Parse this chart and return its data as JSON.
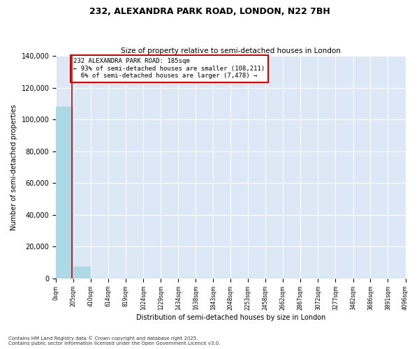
{
  "title_line1": "232, ALEXANDRA PARK ROAD, LONDON, N22 7BH",
  "title_line2": "Size of property relative to semi-detached houses in London",
  "xlabel": "Distribution of semi-detached houses by size in London",
  "ylabel": "Number of semi-detached properties",
  "property_label": "232 ALEXANDRA PARK ROAD: 185sqm",
  "pct_smaller": 93,
  "count_smaller": 108211,
  "pct_larger": 6,
  "count_larger": 7478,
  "bin_edges": [
    0,
    205,
    410,
    614,
    819,
    1024,
    1229,
    1434,
    1638,
    1843,
    2048,
    2253,
    2458,
    2662,
    2867,
    3072,
    3277,
    3482,
    3686,
    3891,
    4096
  ],
  "bin_counts": [
    108211,
    7478,
    200,
    50,
    20,
    10,
    5,
    3,
    2,
    1,
    1,
    1,
    1,
    0,
    0,
    0,
    0,
    0,
    0,
    0
  ],
  "bar_color": "#add8e6",
  "bar_edge_color": "#add8e6",
  "vline_color": "#cc0000",
  "vline_x": 185,
  "annotation_box_color": "#cc0000",
  "plot_bg_color": "#dce8f5",
  "fig_bg_color": "#ffffff",
  "grid_color": "#ffffff",
  "ylim": [
    0,
    140000
  ],
  "yticks": [
    0,
    20000,
    40000,
    60000,
    80000,
    100000,
    120000,
    140000
  ],
  "bin_labels": [
    "0sqm",
    "205sqm",
    "410sqm",
    "614sqm",
    "819sqm",
    "1024sqm",
    "1229sqm",
    "1434sqm",
    "1638sqm",
    "1843sqm",
    "2048sqm",
    "2253sqm",
    "2458sqm",
    "2662sqm",
    "2867sqm",
    "3072sqm",
    "3277sqm",
    "3482sqm",
    "3686sqm",
    "3891sqm",
    "4096sqm"
  ],
  "footnote1": "Contains HM Land Registry data © Crown copyright and database right 2025.",
  "footnote2": "Contains public sector information licensed under the Open Government Licence v3.0."
}
